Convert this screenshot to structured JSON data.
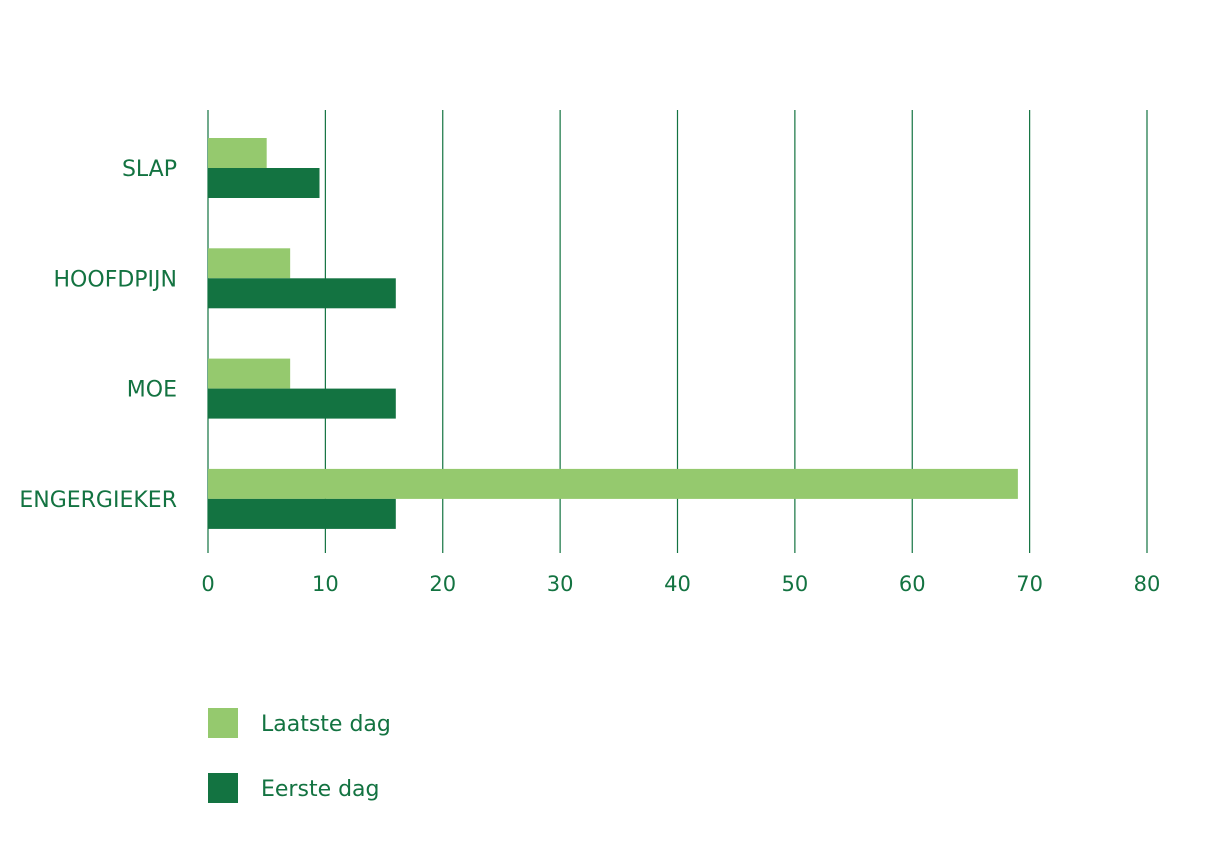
{
  "chart_data": {
    "type": "bar",
    "orientation": "horizontal",
    "categories": [
      "SLAP",
      "HOOFDPIJN",
      "MOE",
      "ENGERGIEKER"
    ],
    "series": [
      {
        "name": "Laatste dag",
        "values": [
          5,
          7,
          7,
          69
        ],
        "color": "#95c96e"
      },
      {
        "name": "Eerste dag",
        "values": [
          9.5,
          16,
          16,
          16
        ],
        "color": "#137341"
      }
    ],
    "xlim": [
      0,
      80
    ],
    "xticks": [
      0,
      10,
      20,
      30,
      40,
      50,
      60,
      70,
      80
    ],
    "grid": true,
    "legend_position": "bottom-left"
  },
  "colors": {
    "text": "#137341",
    "grid": "#137341",
    "light": "#95c96e",
    "dark": "#137341"
  }
}
